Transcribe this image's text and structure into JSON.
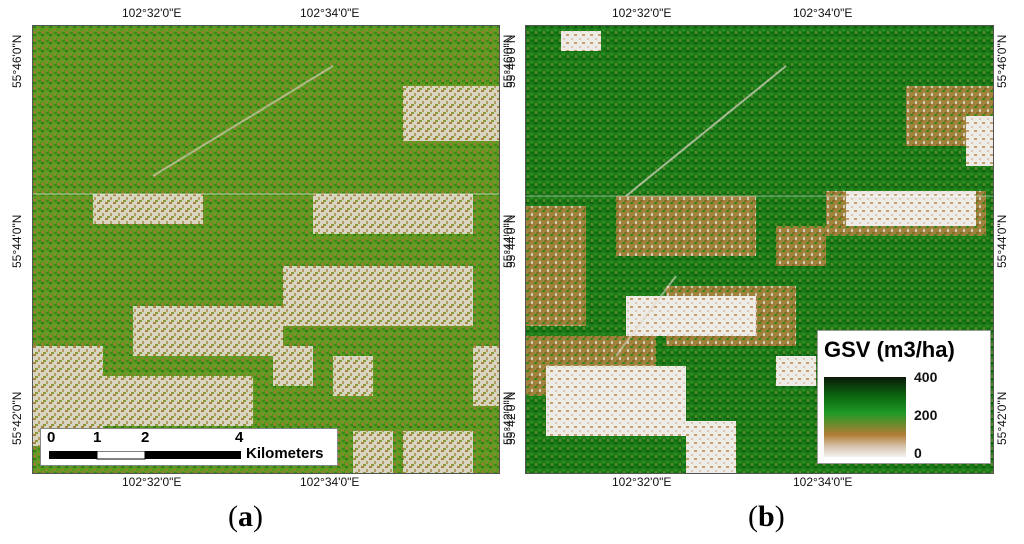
{
  "panels": [
    {
      "letter": "a",
      "top_labels": [
        "102°32'0\"E",
        "102°34'0\"E"
      ],
      "bottom_labels": [
        "102°32'0\"E",
        "102°34'0\"E"
      ],
      "left_labels": [
        "55°46'0\"N",
        "55°44'0\"N",
        "55°42'0\"N"
      ],
      "right_labels": [
        "55°46'0\"N",
        "55°44'0\"N",
        "55°42'0\"N"
      ]
    },
    {
      "letter": "b",
      "top_labels": [
        "102°32'0\"E",
        "102°34'0\"E"
      ],
      "bottom_labels": [
        "102°32'0\"E",
        "102°34'0\"E"
      ],
      "left_labels": [
        "55°46'0\"N",
        "55°44'0\"N",
        "55°42'0\"N"
      ],
      "right_labels": [
        "55°46'0\"N",
        "55°44'0\"N",
        "55°42'0\"N"
      ]
    }
  ],
  "scalebar": {
    "ticks": [
      "0",
      "1",
      "2",
      "4"
    ],
    "unit": "Kilometers"
  },
  "legend": {
    "title": "GSV (m3/ha)",
    "values": [
      "400",
      "200",
      "0"
    ]
  },
  "colors": {
    "dark_forest": "#0d6a10",
    "forest": "#3f9a1e",
    "soil": "#b27c34",
    "bare": "#eceae6"
  }
}
